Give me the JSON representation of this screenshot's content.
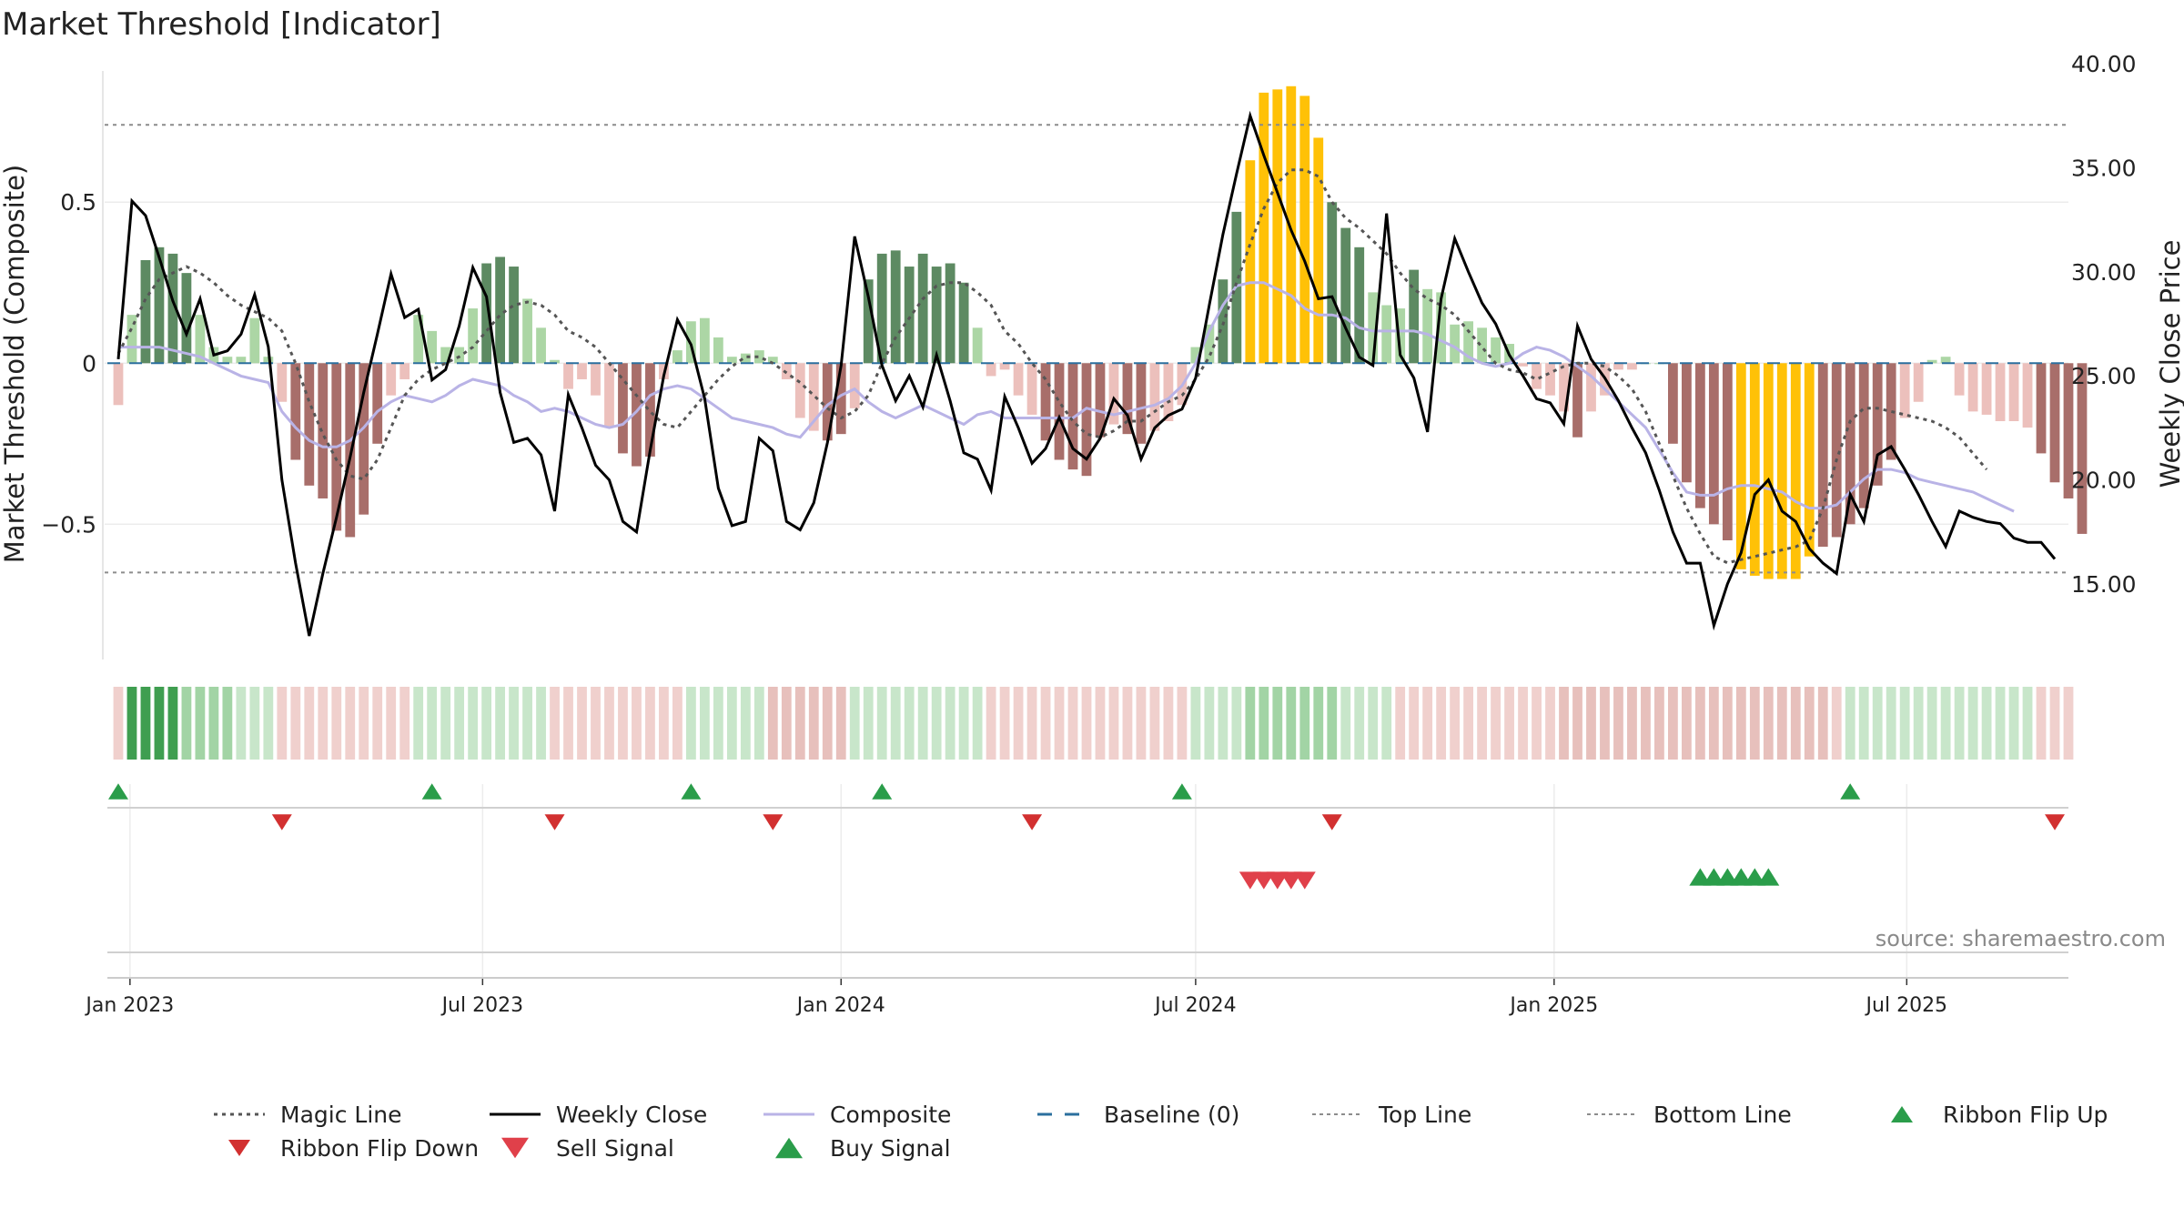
{
  "chart_data": {
    "type": "composite-indicator",
    "title": "Market Threshold [Indicator]",
    "ylabel_left": "Market Threshold (Composite)",
    "ylabel_right": "Weekly Close Price",
    "source": "source: sharemaestro.com",
    "ylim_left": [
      -0.92,
      0.93
    ],
    "ylim_right": [
      11.37,
      40.0
    ],
    "yticks_left": [
      {
        "v": 0.5,
        "label": "0.5"
      },
      {
        "v": 0,
        "label": "0"
      },
      {
        "v": -0.5,
        "label": "−0.5"
      }
    ],
    "yticks_right": [
      {
        "v": 40,
        "label": "40.00"
      },
      {
        "v": 35,
        "label": "35.00"
      },
      {
        "v": 30,
        "label": "30.00"
      },
      {
        "v": 25,
        "label": "25.00"
      },
      {
        "v": 20,
        "label": "20.00"
      },
      {
        "v": 15,
        "label": "15.00"
      }
    ],
    "xlim": [
      "2022-12-19",
      "2025-09-22"
    ],
    "xticks": [
      {
        "date": "2023-01-01",
        "label": "Jan 2023"
      },
      {
        "date": "2023-07-01",
        "label": "Jul 2023"
      },
      {
        "date": "2024-01-01",
        "label": "Jan 2024"
      },
      {
        "date": "2024-07-01",
        "label": "Jul 2024"
      },
      {
        "date": "2025-01-01",
        "label": "Jan 2025"
      },
      {
        "date": "2025-07-01",
        "label": "Jul 2025"
      }
    ],
    "start_date": "2022-12-26",
    "top_line": 0.74,
    "bottom_line": -0.65,
    "baseline": 0,
    "composite": [
      0.05,
      0.05,
      0.05,
      0.05,
      0.04,
      0.03,
      0.02,
      0.0,
      -0.02,
      -0.04,
      -0.05,
      -0.06,
      -0.15,
      -0.2,
      -0.24,
      -0.26,
      -0.26,
      -0.24,
      -0.2,
      -0.15,
      -0.12,
      -0.1,
      -0.11,
      -0.12,
      -0.1,
      -0.07,
      -0.05,
      -0.06,
      -0.07,
      -0.1,
      -0.12,
      -0.15,
      -0.14,
      -0.15,
      -0.17,
      -0.19,
      -0.2,
      -0.19,
      -0.15,
      -0.1,
      -0.08,
      -0.07,
      -0.08,
      -0.11,
      -0.14,
      -0.17,
      -0.18,
      -0.19,
      -0.2,
      -0.22,
      -0.23,
      -0.18,
      -0.13,
      -0.1,
      -0.08,
      -0.12,
      -0.15,
      -0.17,
      -0.15,
      -0.13,
      -0.15,
      -0.17,
      -0.19,
      -0.16,
      -0.15,
      -0.17,
      -0.17,
      -0.17,
      -0.17,
      -0.17,
      -0.17,
      -0.14,
      -0.15,
      -0.16,
      -0.15,
      -0.14,
      -0.13,
      -0.11,
      -0.07,
      0.0,
      0.1,
      0.18,
      0.24,
      0.25,
      0.25,
      0.23,
      0.21,
      0.17,
      0.15,
      0.15,
      0.14,
      0.11,
      0.1,
      0.1,
      0.1,
      0.1,
      0.09,
      0.07,
      0.05,
      0.02,
      0.0,
      -0.01,
      0.0,
      0.03,
      0.05,
      0.04,
      0.02,
      -0.01,
      -0.04,
      -0.08,
      -0.12,
      -0.16,
      -0.2,
      -0.27,
      -0.34,
      -0.4,
      -0.41,
      -0.41,
      -0.39,
      -0.38,
      -0.38,
      -0.39,
      -0.4,
      -0.43,
      -0.45,
      -0.45,
      -0.44,
      -0.4,
      -0.36,
      -0.33,
      -0.33,
      -0.34,
      -0.36,
      -0.37,
      -0.38,
      -0.39,
      -0.4,
      -0.42,
      -0.44,
      -0.46
    ],
    "magic_line": [
      0.03,
      0.11,
      0.2,
      0.26,
      0.28,
      0.3,
      0.28,
      0.25,
      0.21,
      0.18,
      0.16,
      0.14,
      0.1,
      0.0,
      -0.12,
      -0.22,
      -0.3,
      -0.35,
      -0.36,
      -0.3,
      -0.2,
      -0.1,
      -0.05,
      -0.02,
      0.0,
      0.02,
      0.05,
      0.1,
      0.15,
      0.18,
      0.19,
      0.18,
      0.15,
      0.1,
      0.08,
      0.05,
      0.0,
      -0.05,
      -0.1,
      -0.15,
      -0.19,
      -0.2,
      -0.15,
      -0.1,
      -0.05,
      -0.01,
      0.02,
      0.02,
      0.0,
      -0.03,
      -0.06,
      -0.1,
      -0.14,
      -0.17,
      -0.15,
      -0.1,
      0.0,
      0.08,
      0.14,
      0.2,
      0.24,
      0.25,
      0.25,
      0.22,
      0.18,
      0.1,
      0.06,
      0.0,
      -0.05,
      -0.12,
      -0.18,
      -0.22,
      -0.23,
      -0.21,
      -0.18,
      -0.18,
      -0.15,
      -0.12,
      -0.1,
      -0.05,
      0.02,
      0.12,
      0.25,
      0.37,
      0.48,
      0.56,
      0.6,
      0.6,
      0.58,
      0.5,
      0.45,
      0.42,
      0.38,
      0.34,
      0.28,
      0.23,
      0.2,
      0.18,
      0.15,
      0.1,
      0.05,
      0.0,
      -0.02,
      -0.03,
      -0.05,
      -0.03,
      -0.01,
      0.0,
      0.0,
      -0.01,
      -0.04,
      -0.08,
      -0.15,
      -0.25,
      -0.35,
      -0.45,
      -0.53,
      -0.6,
      -0.62,
      -0.61,
      -0.6,
      -0.59,
      -0.58,
      -0.57,
      -0.55,
      -0.45,
      -0.3,
      -0.18,
      -0.14,
      -0.14,
      -0.15,
      -0.16,
      -0.17,
      -0.18,
      -0.2,
      -0.23,
      -0.28,
      -0.33
    ],
    "histogram": [
      -0.13,
      0.15,
      0.32,
      0.36,
      0.34,
      0.28,
      0.15,
      0.05,
      0.02,
      0.02,
      0.14,
      0.02,
      -0.12,
      -0.3,
      -0.38,
      -0.42,
      -0.52,
      -0.54,
      -0.47,
      -0.25,
      -0.1,
      -0.05,
      0.15,
      0.1,
      0.05,
      0.05,
      0.17,
      0.31,
      0.33,
      0.3,
      0.2,
      0.11,
      0.01,
      -0.08,
      -0.05,
      -0.1,
      -0.2,
      -0.28,
      -0.32,
      -0.29,
      -0.05,
      0.04,
      0.13,
      0.14,
      0.08,
      0.02,
      0.03,
      0.04,
      0.02,
      -0.05,
      -0.17,
      -0.21,
      -0.24,
      -0.22,
      -0.14,
      0.26,
      0.34,
      0.35,
      0.3,
      0.34,
      0.3,
      0.31,
      0.25,
      0.11,
      -0.04,
      -0.02,
      -0.1,
      -0.16,
      -0.24,
      -0.3,
      -0.33,
      -0.35,
      -0.23,
      -0.19,
      -0.22,
      -0.25,
      -0.21,
      -0.18,
      -0.13,
      0.05,
      0.12,
      0.26,
      0.47,
      0.63,
      0.84,
      0.85,
      0.86,
      0.83,
      0.7,
      0.5,
      0.42,
      0.36,
      0.22,
      0.18,
      0.17,
      0.29,
      0.23,
      0.22,
      0.12,
      0.13,
      0.11,
      0.08,
      0.06,
      -0.01,
      -0.08,
      -0.1,
      -0.15,
      -0.23,
      -0.15,
      -0.1,
      -0.02,
      -0.02,
      0.0,
      0.0,
      -0.25,
      -0.37,
      -0.45,
      -0.5,
      -0.55,
      -0.64,
      -0.66,
      -0.67,
      -0.67,
      -0.67,
      -0.6,
      -0.57,
      -0.54,
      -0.5,
      -0.45,
      -0.38,
      -0.3,
      -0.17,
      -0.12,
      0.01,
      0.02,
      -0.1,
      -0.15,
      -0.16,
      -0.18,
      -0.18,
      -0.2,
      -0.28,
      -0.37,
      -0.42,
      -0.53
    ],
    "hist_color_dark_green": "#5d8a62",
    "hist_color_light_green": "#acd6a5",
    "hist_color_dark_red": "#a86e6a",
    "hist_color_light_red": "#ecc0bc",
    "hist_color_extreme": "#ffc107",
    "weekly_close": [
      25.8,
      33.4,
      32.7,
      30.7,
      28.6,
      27.0,
      28.7,
      26.0,
      26.2,
      27.0,
      28.9,
      26.4,
      20.0,
      16.0,
      12.5,
      15.5,
      18.2,
      21.1,
      24.2,
      27.0,
      29.9,
      27.8,
      28.2,
      24.8,
      25.3,
      27.4,
      30.2,
      28.8,
      24.2,
      21.8,
      22.0,
      21.2,
      18.5,
      24.1,
      22.5,
      20.7,
      20.0,
      18.0,
      17.5,
      21.4,
      25.0,
      27.7,
      26.5,
      23.9,
      19.6,
      17.8,
      18.0,
      22.0,
      21.4,
      18.0,
      17.6,
      18.9,
      21.8,
      25.5,
      31.7,
      28.8,
      25.5,
      23.8,
      25.0,
      23.5,
      26.0,
      23.8,
      21.3,
      21.0,
      19.5,
      24.0,
      22.5,
      20.8,
      21.5,
      23.0,
      21.5,
      21.0,
      22.0,
      23.9,
      23.1,
      21.0,
      22.5,
      23.1,
      23.4,
      24.9,
      28.4,
      31.8,
      34.7,
      37.5,
      35.6,
      33.8,
      32.0,
      30.5,
      28.7,
      28.8,
      27.3,
      25.9,
      25.5,
      32.8,
      26.0,
      24.9,
      22.3,
      28.7,
      31.6,
      30.0,
      28.5,
      27.5,
      26.0,
      25.0,
      23.9,
      23.7,
      22.7,
      27.4,
      25.8,
      24.9,
      23.8,
      22.5,
      21.3,
      19.5,
      17.5,
      16.0,
      16.0,
      13.0,
      15.0,
      16.5,
      19.3,
      20.0,
      18.5,
      18.0,
      16.7,
      16.0,
      15.5,
      19.3,
      18.0,
      21.2,
      21.6,
      20.5,
      19.3,
      18.0,
      16.8,
      18.5,
      18.2,
      18.0,
      17.9,
      17.2,
      17.0,
      17.0,
      16.2
    ],
    "ribbon": [
      -1,
      3,
      3,
      3,
      3,
      2,
      2,
      2,
      2,
      1,
      1,
      1,
      -1,
      -1,
      -1,
      -1,
      -1,
      -1,
      -1,
      -1,
      -1,
      -1,
      1,
      1,
      1,
      1,
      1,
      1,
      1,
      1,
      1,
      1,
      -1,
      -1,
      -1,
      -1,
      -1,
      -1,
      -1,
      -1,
      -1,
      -1,
      1,
      1,
      1,
      1,
      1,
      1,
      -2,
      -2,
      -2,
      -2,
      -2,
      -2,
      1,
      1,
      1,
      1,
      1,
      1,
      1,
      1,
      1,
      1,
      -1,
      -1,
      -1,
      -1,
      -1,
      -1,
      -1,
      -1,
      -1,
      -1,
      -1,
      -1,
      -1,
      -1,
      -1,
      1,
      1,
      1,
      1,
      2,
      2,
      2,
      2,
      2,
      2,
      2,
      1,
      1,
      1,
      1,
      -1,
      -1,
      -1,
      -1,
      -1,
      -1,
      -1,
      -1,
      -1,
      -1,
      -1,
      -1,
      -2,
      -2,
      -2,
      -2,
      -2,
      -2,
      -2,
      -2,
      -2,
      -2,
      -2,
      -2,
      -2,
      -2,
      -2,
      -2,
      -2,
      -2,
      -2,
      -2,
      -1,
      1,
      1,
      1,
      1,
      1,
      1,
      1,
      1,
      1,
      1,
      1,
      1,
      1,
      1,
      -1,
      -1,
      -1
    ],
    "ribbon_colors": {
      "3": "#3f9e50",
      "2": "#a2d4a5",
      "1": "#c8e6ca",
      "-1": "#f0d0cd",
      "-2": "#e7c0bc"
    },
    "ribbon_flip_up": [
      "2022-12-26",
      "2023-06-05",
      "2023-10-16",
      "2024-01-22",
      "2024-06-24",
      "2025-06-02"
    ],
    "ribbon_flip_down": [
      "2023-03-20",
      "2023-08-07",
      "2023-11-27",
      "2024-04-08",
      "2024-09-09",
      "2025-09-15"
    ],
    "sell_signals": [
      "2024-07-29",
      "2024-08-05",
      "2024-08-12",
      "2024-08-19",
      "2024-08-26"
    ],
    "buy_signals": [
      "2025-03-17",
      "2025-03-24",
      "2025-03-31",
      "2025-04-07",
      "2025-04-14",
      "2025-04-21"
    ],
    "legend": [
      {
        "name": "Magic Line",
        "kind": "dotted",
        "color": "#555555"
      },
      {
        "name": "Weekly Close",
        "kind": "solid",
        "color": "#000000"
      },
      {
        "name": "Composite",
        "kind": "solid",
        "color": "#b9b3e6"
      },
      {
        "name": "Baseline (0)",
        "kind": "dashed",
        "color": "#2b6f9e"
      },
      {
        "name": "Top Line",
        "kind": "dotted-thin",
        "color": "#8c8c8c"
      },
      {
        "name": "Bottom Line",
        "kind": "dotted-thin",
        "color": "#8c8c8c"
      },
      {
        "name": "Ribbon Flip Up",
        "kind": "triangle-up",
        "color": "#2a9d4a"
      },
      {
        "name": "Ribbon Flip Down",
        "kind": "triangle-down",
        "color": "#d23030"
      },
      {
        "name": "Sell Signal",
        "kind": "triangle-down",
        "color": "#e0404a"
      },
      {
        "name": "Buy Signal",
        "kind": "triangle-up",
        "color": "#2a9d4a"
      }
    ]
  }
}
